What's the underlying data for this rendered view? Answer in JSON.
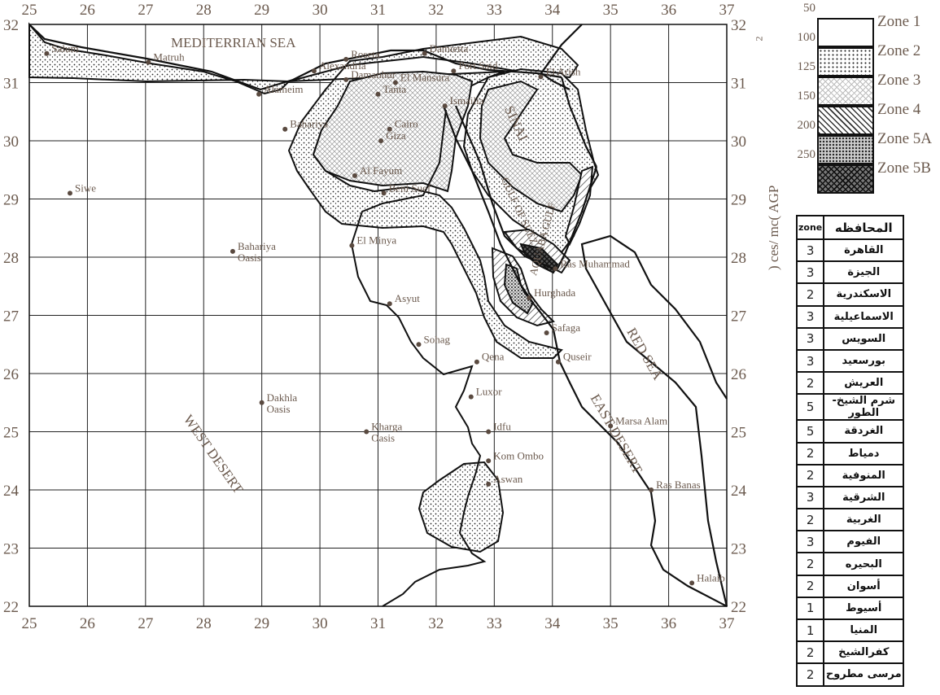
{
  "map": {
    "x_ticks": [
      "25",
      "26",
      "27",
      "28",
      "29",
      "30",
      "31",
      "32",
      "33",
      "34",
      "35",
      "36",
      "37"
    ],
    "y_ticks": [
      "32",
      "31",
      "30",
      "29",
      "28",
      "27",
      "26",
      "25",
      "24",
      "23",
      "22"
    ],
    "sea_labels": [
      "MEDITERRIAN SEA",
      "RED SEA"
    ],
    "region_labels": [
      "WEST DESERT",
      "EAST DESERT",
      "SINAI",
      "GULF OF SUEZ",
      "AQUABA GULF"
    ],
    "cities": [
      {
        "name": "Salum",
        "lon": 25.3,
        "lat": 31.5
      },
      {
        "name": "Matruh",
        "lon": 27.05,
        "lat": 31.35
      },
      {
        "name": "Alexandria",
        "lon": 29.9,
        "lat": 31.2
      },
      {
        "name": "Alameim",
        "lon": 28.95,
        "lat": 30.8
      },
      {
        "name": "Roseta",
        "lon": 30.45,
        "lat": 31.4
      },
      {
        "name": "Damietta",
        "lon": 31.8,
        "lat": 31.5
      },
      {
        "name": "Damanhur",
        "lon": 30.45,
        "lat": 31.05
      },
      {
        "name": "El Mansura",
        "lon": 31.3,
        "lat": 31.0
      },
      {
        "name": "Port Said",
        "lon": 32.3,
        "lat": 31.2
      },
      {
        "name": "El Arish",
        "lon": 33.8,
        "lat": 31.1
      },
      {
        "name": "Tanta",
        "lon": 31.0,
        "lat": 30.8
      },
      {
        "name": "Ismailia",
        "lon": 32.15,
        "lat": 30.6
      },
      {
        "name": "Bahariya",
        "lon": 29.4,
        "lat": 30.2
      },
      {
        "name": "Cairo",
        "lon": 31.2,
        "lat": 30.2
      },
      {
        "name": "Giza",
        "lon": 31.05,
        "lat": 30.0
      },
      {
        "name": "Al Fayum",
        "lon": 30.6,
        "lat": 29.4
      },
      {
        "name": "Beni Suef",
        "lon": 31.1,
        "lat": 29.1
      },
      {
        "name": "Siwe",
        "lon": 25.7,
        "lat": 29.1
      },
      {
        "name": "El Minya",
        "lon": 30.55,
        "lat": 28.2
      },
      {
        "name": "Bahariya Oasis",
        "lon": 28.5,
        "lat": 28.1
      },
      {
        "name": "Ras Muhammad",
        "lon": 34.05,
        "lat": 27.8
      },
      {
        "name": "Hurghada",
        "lon": 33.6,
        "lat": 27.3
      },
      {
        "name": "Asyut",
        "lon": 31.2,
        "lat": 27.2
      },
      {
        "name": "Safaga",
        "lon": 33.9,
        "lat": 26.7
      },
      {
        "name": "Sohag",
        "lon": 31.7,
        "lat": 26.5
      },
      {
        "name": "Qena",
        "lon": 32.7,
        "lat": 26.2
      },
      {
        "name": "Quseir",
        "lon": 34.1,
        "lat": 26.2
      },
      {
        "name": "Luxor",
        "lon": 32.6,
        "lat": 25.6
      },
      {
        "name": "Dakhla Oasis",
        "lon": 29.0,
        "lat": 25.5
      },
      {
        "name": "Kharga Oasis",
        "lon": 30.8,
        "lat": 25.0
      },
      {
        "name": "Idfu",
        "lon": 32.9,
        "lat": 25.0
      },
      {
        "name": "Marsa Alam",
        "lon": 35.0,
        "lat": 25.1
      },
      {
        "name": "Kom Ombo",
        "lon": 32.9,
        "lat": 24.5
      },
      {
        "name": "Aswan",
        "lon": 32.9,
        "lat": 24.1
      },
      {
        "name": "Ras Banas",
        "lon": 35.7,
        "lat": 24.0
      },
      {
        "name": "Halaib",
        "lon": 36.4,
        "lat": 22.4
      }
    ]
  },
  "legend": {
    "items": [
      {
        "value": "50",
        "label": "Zone 1",
        "pattern": "zone1"
      },
      {
        "value": "100",
        "label": "Zone 2",
        "pattern": "zone2"
      },
      {
        "value": "125",
        "label": "Zone 3",
        "pattern": "zone3"
      },
      {
        "value": "150",
        "label": "Zone 4",
        "pattern": "zone4"
      },
      {
        "value": "200",
        "label": "Zone 5A",
        "pattern": "zone5a"
      },
      {
        "value": "250",
        "label": "Zone 5B",
        "pattern": "zone5b"
      }
    ],
    "axis_label": ") ces/ mc( AGP",
    "axis_superscript": "2"
  },
  "table": {
    "header_zone": "zone",
    "header_gov": "المحافظه",
    "rows": [
      {
        "zone": "3",
        "gov": "القاهرة"
      },
      {
        "zone": "3",
        "gov": "الجيزة"
      },
      {
        "zone": "2",
        "gov": "الاسكندرية"
      },
      {
        "zone": "3",
        "gov": "الاسماعيلية"
      },
      {
        "zone": "3",
        "gov": "السويس"
      },
      {
        "zone": "3",
        "gov": "بورسعيد"
      },
      {
        "zone": "2",
        "gov": "العريش"
      },
      {
        "zone": "5",
        "gov": "شرم الشيخ-الطور"
      },
      {
        "zone": "5",
        "gov": "الغردقة"
      },
      {
        "zone": "2",
        "gov": "دمياط"
      },
      {
        "zone": "2",
        "gov": "المنوفية"
      },
      {
        "zone": "3",
        "gov": "الشرقية"
      },
      {
        "zone": "2",
        "gov": "الغربية"
      },
      {
        "zone": "3",
        "gov": "الفيوم"
      },
      {
        "zone": "2",
        "gov": "البحيره"
      },
      {
        "zone": "2",
        "gov": "أسوان"
      },
      {
        "zone": "1",
        "gov": "أسيوط"
      },
      {
        "zone": "1",
        "gov": "المنيا"
      },
      {
        "zone": "2",
        "gov": "كفرالشيخ"
      },
      {
        "zone": "2",
        "gov": "مرسى مطروح"
      }
    ]
  }
}
